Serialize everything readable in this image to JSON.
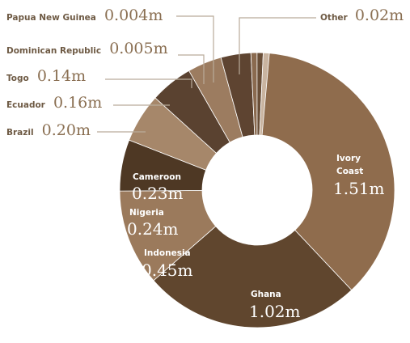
{
  "chart_data": {
    "type": "pie",
    "subtype": "donut",
    "title": "",
    "unit": "m",
    "slices": [
      {
        "label": "Ivory Coast",
        "label_lines": [
          "Ivory",
          "Coast"
        ],
        "value": 1.51,
        "value_text": "1.51m",
        "color": "#8f6c4d"
      },
      {
        "label": "Ghana",
        "value": 1.02,
        "value_text": "1.02m",
        "color": "#60462e"
      },
      {
        "label": "Indonesia",
        "value": 0.45,
        "value_text": "0.45m",
        "color": "#9b7a5c"
      },
      {
        "label": "Nigeria",
        "value": 0.24,
        "value_text": "0.24m",
        "color": "#4e3824"
      },
      {
        "label": "Cameroon",
        "value": 0.23,
        "value_text": "0.23m",
        "color": "#a6876a"
      },
      {
        "label": "Brazil",
        "value": 0.2,
        "value_text": "0.20m",
        "color": "#5a4230"
      },
      {
        "label": "Ecuador",
        "value": 0.16,
        "value_text": "0.16m",
        "color": "#9c7c60"
      },
      {
        "label": "Togo",
        "value": 0.14,
        "value_text": "0.14m",
        "color": "#5e4431"
      },
      {
        "label": "Dominican Republic",
        "value": 0.005,
        "value_text": "0.005m",
        "color": "#8a6a4f"
      },
      {
        "label": "Papua New Guinea",
        "value": 0.004,
        "value_text": "0.004m",
        "color": "#6a4f38"
      },
      {
        "label": "Other",
        "value": 0.02,
        "value_text": "0.02m",
        "color": "#c9b4a0"
      }
    ]
  }
}
